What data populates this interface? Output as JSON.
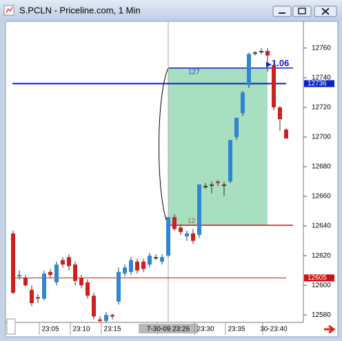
{
  "window": {
    "title": "S.PCLN - Priceline.com, 1 Min"
  },
  "chart_data": {
    "type": "candlestick",
    "categories": [
      null,
      null,
      null,
      null,
      null,
      null,
      "23:05",
      null,
      null,
      null,
      null,
      "23:10",
      null,
      null,
      null,
      null,
      "23:15",
      null,
      null,
      null,
      null,
      null,
      null,
      null,
      null,
      "7-30-09 23:26",
      null,
      null,
      null,
      null,
      null,
      "23:30",
      null,
      null,
      null,
      null,
      "23:35",
      null,
      null,
      null,
      null,
      null,
      "30-23:40",
      null,
      null
    ],
    "series": [
      {
        "up_color": "#2f86d2",
        "down_color": "#cf1f1f",
        "open": [
          12635,
          12606,
          12605,
          12597,
          12592,
          12591,
          12609,
          12602,
          12617,
          12619,
          12614,
          12605,
          12602,
          12593,
          12577,
          12576,
          12580,
          12589,
          12608,
          12609,
          12616,
          12616,
          12614,
          12619,
          12616,
          12620,
          12646,
          12639,
          12633,
          12635,
          12634,
          12667,
          12668,
          12670,
          12668,
          12670,
          12700,
          12716,
          12735,
          12757,
          12758,
          12758,
          12748,
          12720,
          12705
        ],
        "high": [
          12637,
          12610,
          12607,
          12600,
          12594,
          12610,
          12611,
          12616,
          12619,
          12621,
          12616,
          12607,
          12604,
          12595,
          12579,
          12582,
          12581,
          12612,
          12614,
          12619,
          12618,
          12618,
          12622,
          12621,
          12621,
          12646,
          12648,
          12641,
          12637,
          12638,
          12668,
          12669,
          12670,
          12671,
          12670,
          12698,
          12713,
          12731,
          12757,
          12758,
          12760,
          12760,
          12750,
          12721,
          12706
        ],
        "low": [
          12594,
          12604,
          12599,
          12586,
          12588,
          12590,
          12605,
          12600,
          12612,
          12610,
          12600,
          12598,
          12591,
          12577,
          12575,
          12575,
          12577,
          12587,
          12606,
          12607,
          12608,
          12609,
          12612,
          12617,
          12614,
          12619,
          12637,
          12634,
          12630,
          12628,
          12632,
          12665,
          12662,
          12667,
          12660,
          12669,
          12698,
          12714,
          12733,
          12755,
          12756,
          12744,
          12718,
          12704,
          12699
        ],
        "close": [
          12595,
          12607,
          12600,
          12588,
          12591,
          12608,
          12607,
          12614,
          12614,
          12613,
          12603,
          12600,
          12593,
          12579,
          12576,
          12580,
          12579,
          12609,
          12612,
          12617,
          12610,
          12611,
          12620,
          12619,
          12619,
          12646,
          12638,
          12636,
          12635,
          12630,
          12668,
          12667,
          12668,
          12669,
          12668,
          12698,
          12713,
          12730,
          12756,
          12757,
          12758,
          12755,
          12720,
          12712,
          12699
        ]
      }
    ],
    "ylim": [
      12575,
      12778
    ],
    "yticks": [
      12580,
      12600,
      12620,
      12640,
      12660,
      12680,
      12700,
      12720,
      12740,
      12760
    ],
    "hlines": [
      {
        "value": 12736,
        "color": "#0a1fc8"
      },
      {
        "value": 12605,
        "color": "#cc1111"
      }
    ],
    "range_box": {
      "top": 12746.5,
      "bottom": 12640.5,
      "top_label": "127",
      "bottom_label": "12",
      "change_label": "1.06",
      "fill": "#a8dfc0"
    }
  }
}
